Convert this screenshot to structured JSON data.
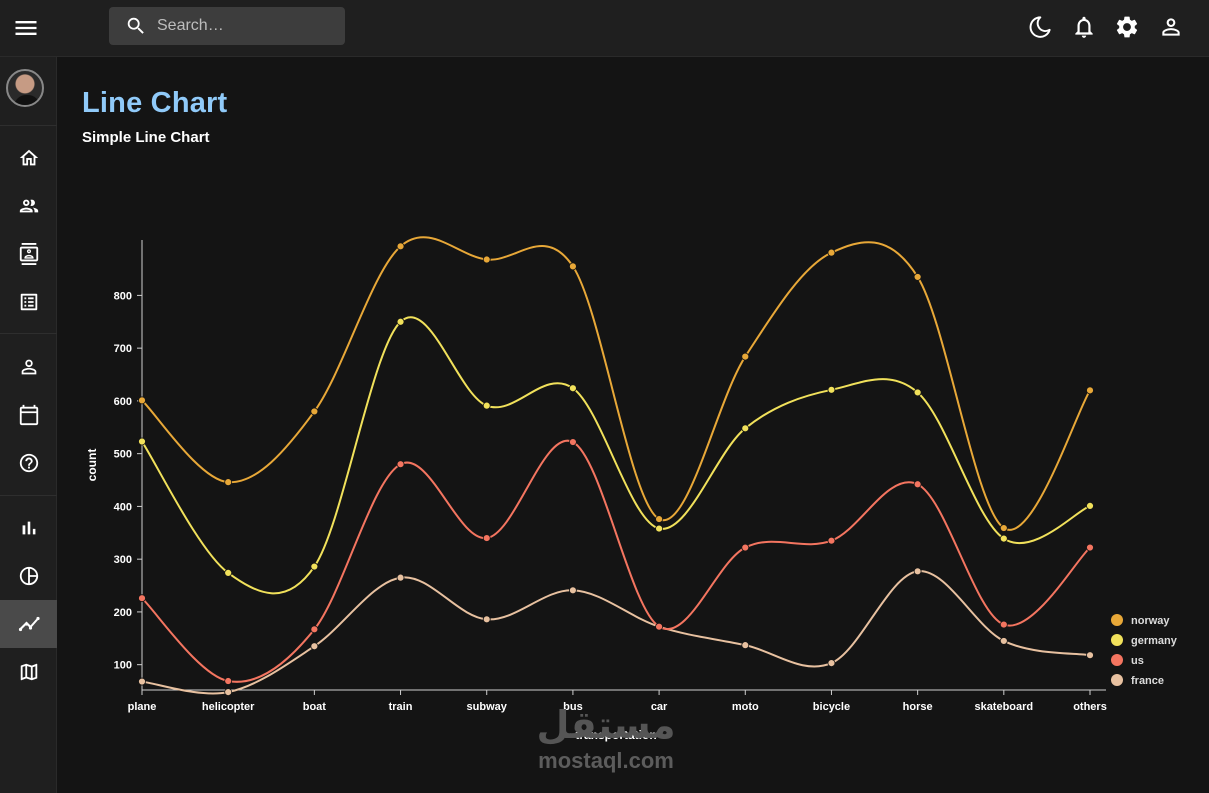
{
  "search": {
    "placeholder": "Search…"
  },
  "page": {
    "title": "Line Chart",
    "subtitle": "Simple Line Chart"
  },
  "watermark": {
    "arabic": "مستقل",
    "latin": "mostaql.com"
  },
  "colors": {
    "title": "#90caf9",
    "norway": "#e8a838",
    "germany": "#f1e15b",
    "us": "#f47560",
    "france": "#e8c1a0"
  },
  "chart_data": {
    "type": "line",
    "title": "",
    "xlabel": "transportation",
    "ylabel": "count",
    "categories": [
      "plane",
      "helicopter",
      "boat",
      "train",
      "subway",
      "bus",
      "car",
      "moto",
      "bicycle",
      "horse",
      "skateboard",
      "others"
    ],
    "yticks": [
      100,
      200,
      300,
      400,
      500,
      600,
      700,
      800
    ],
    "ylim": [
      52,
      905
    ],
    "legend_position": "bottom-right",
    "grid": false,
    "series": [
      {
        "name": "norway",
        "color": "#e8a838",
        "values": [
          601,
          446,
          580,
          893,
          868,
          855,
          376,
          684,
          881,
          835,
          359,
          620
        ]
      },
      {
        "name": "germany",
        "color": "#f1e15b",
        "values": [
          523,
          274,
          286,
          750,
          591,
          624,
          358,
          548,
          621,
          616,
          339,
          401
        ]
      },
      {
        "name": "us",
        "color": "#f47560",
        "values": [
          226,
          69,
          167,
          480,
          340,
          522,
          172,
          322,
          335,
          442,
          176,
          322
        ]
      },
      {
        "name": "france",
        "color": "#e8c1a0",
        "values": [
          68,
          48,
          135,
          265,
          186,
          241,
          172,
          137,
          103,
          277,
          145,
          118
        ]
      }
    ]
  }
}
